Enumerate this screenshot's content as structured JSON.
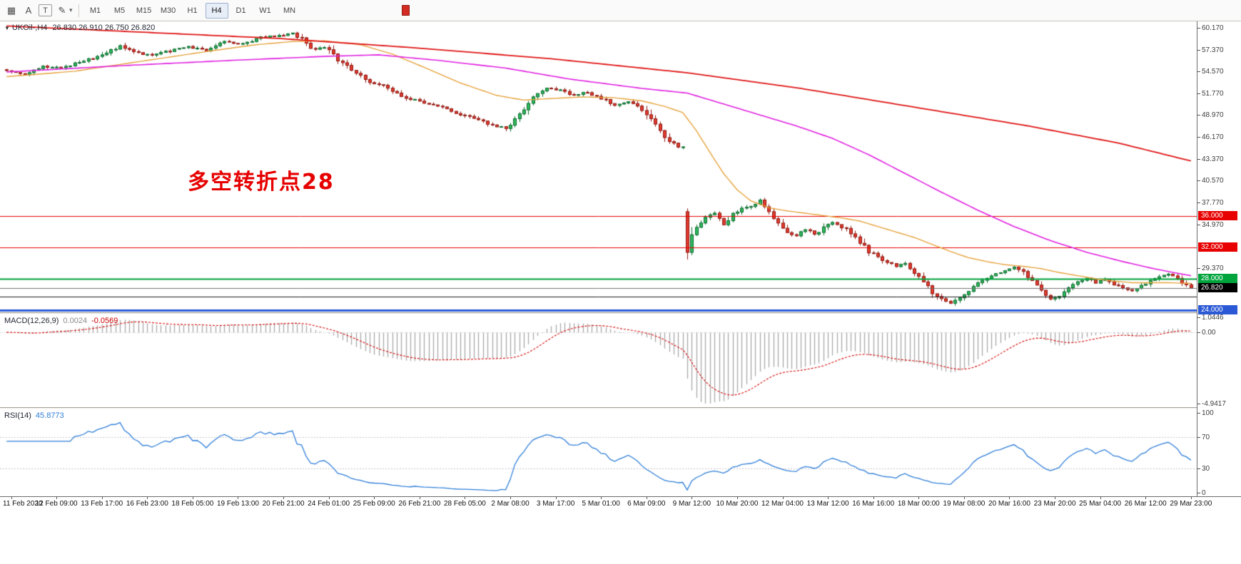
{
  "toolbar": {
    "icons": [
      {
        "name": "grid-icon",
        "glyph": "▦"
      },
      {
        "name": "text-tool-icon",
        "glyph": "A"
      },
      {
        "name": "textbox-tool-icon",
        "glyph": "T"
      },
      {
        "name": "draw-tool-icon",
        "glyph": "✎"
      },
      {
        "name": "draw-tool-caret-icon",
        "glyph": "▾"
      },
      {
        "name": "red-indicator-icon",
        "glyph": ""
      }
    ],
    "timeframes": [
      "M1",
      "M5",
      "M15",
      "M30",
      "H1",
      "H4",
      "D1",
      "W1",
      "MN"
    ],
    "active_timeframe": "H4"
  },
  "chart": {
    "symbol_dropdown_glyph": "▼",
    "symbol": "UKOil-,H4",
    "ohlc": "26.830 26.910 26.750 26.820",
    "annotation": "多空转折点28",
    "annotation_color": "#e60000",
    "price_axis_labels": [
      "60.170",
      "57.370",
      "54.570",
      "51.770",
      "48.970",
      "46.170",
      "43.370",
      "40.570",
      "37.770",
      "34.970",
      "29.370"
    ],
    "level_lines": [
      {
        "price": 36.0,
        "label": "36.000",
        "color": "#e80000",
        "thickness": 1
      },
      {
        "price": 32.0,
        "label": "32.000",
        "color": "#e80000",
        "thickness": 1
      },
      {
        "price": 28.0,
        "label": "28.000",
        "color": "#00a43c",
        "thickness": 2
      },
      {
        "price": 25.7,
        "label": null,
        "color": "#1c1c1c",
        "thickness": 1
      },
      {
        "price": 24.0,
        "label": "24.000",
        "color": "#2b59d6",
        "thickness": 3
      }
    ],
    "current_price": {
      "value": 26.82,
      "label": "26.820",
      "box_color": "#000000",
      "line_color": "#707070"
    }
  },
  "macd": {
    "name": "MACD(12,26,9)",
    "value": "0.0024",
    "signal_value": "-0.0569",
    "axis_values": [
      1.0446,
      0,
      -4.9417
    ],
    "axis_labels": [
      "1.0446",
      "0.00",
      "-4.9417"
    ],
    "range": {
      "max": 1.0446,
      "min": -4.9417
    }
  },
  "rsi": {
    "name": "RSI(14)",
    "value": "45.8773",
    "axis_values": [
      100,
      70,
      30,
      0
    ],
    "axis_labels": [
      "100",
      "70",
      "30",
      "0"
    ],
    "levels": [
      70,
      30
    ]
  },
  "time_axis": {
    "bars_per_label": 10,
    "labels": [
      "11 Feb 2020",
      "12 Feb 09:00",
      "13 Feb 17:00",
      "16 Feb 23:00",
      "18 Feb 05:00",
      "19 Feb 13:00",
      "20 Feb 21:00",
      "24 Feb 01:00",
      "25 Feb 09:00",
      "26 Feb 21:00",
      "28 Feb 05:00",
      "2 Mar 08:00",
      "3 Mar 17:00",
      "5 Mar 01:00",
      "6 Mar 09:00",
      "9 Mar 12:00",
      "10 Mar 20:00",
      "12 Mar 04:00",
      "13 Mar 12:00",
      "16 Mar 16:00",
      "18 Mar 00:00",
      "19 Mar 08:00",
      "20 Mar 16:00",
      "23 Mar 20:00",
      "25 Mar 04:00",
      "26 Mar 12:00",
      "29 Mar 23:00"
    ]
  },
  "chart_data": {
    "type": "candlestick",
    "symbol": "UKOil-",
    "timeframe": "H4",
    "bars": 262,
    "ylim": [
      23.93,
      60.85
    ],
    "last_close": 26.82,
    "up_color": "#2eb85c",
    "up_border": "#0b6b2d",
    "down_color": "#e23b2e",
    "down_border": "#8f1710",
    "macd_colors": {
      "histogram": "#a8a8a8",
      "signal": "#d40000"
    },
    "rsi_color": "#2f7ed8",
    "gaps": [
      {
        "bar": 150,
        "open": 36.6
      }
    ],
    "close_keyframes": [
      [
        0,
        54.6
      ],
      [
        4,
        54.2
      ],
      [
        8,
        55.2
      ],
      [
        12,
        55.0
      ],
      [
        16,
        55.8
      ],
      [
        20,
        56.4
      ],
      [
        25,
        57.8
      ],
      [
        28,
        57.0
      ],
      [
        32,
        56.6
      ],
      [
        36,
        57.2
      ],
      [
        40,
        57.7
      ],
      [
        44,
        57.3
      ],
      [
        48,
        58.4
      ],
      [
        52,
        58.1
      ],
      [
        56,
        58.9
      ],
      [
        60,
        59.2
      ],
      [
        63,
        59.4
      ],
      [
        65,
        58.8
      ],
      [
        67,
        57.4
      ],
      [
        70,
        57.7
      ],
      [
        73,
        56.1
      ],
      [
        76,
        54.9
      ],
      [
        80,
        53.3
      ],
      [
        84,
        52.5
      ],
      [
        88,
        51.2
      ],
      [
        92,
        50.6
      ],
      [
        96,
        49.9
      ],
      [
        100,
        49.1
      ],
      [
        104,
        48.4
      ],
      [
        107,
        47.7
      ],
      [
        110,
        47.3
      ],
      [
        113,
        49.2
      ],
      [
        116,
        51.3
      ],
      [
        119,
        52.5
      ],
      [
        122,
        52.1
      ],
      [
        125,
        51.5
      ],
      [
        128,
        51.9
      ],
      [
        131,
        51.1
      ],
      [
        134,
        50.3
      ],
      [
        137,
        50.7
      ],
      [
        140,
        49.7
      ],
      [
        142,
        48.3
      ],
      [
        144,
        46.9
      ],
      [
        146,
        45.7
      ],
      [
        148,
        44.9
      ],
      [
        149,
        45.3
      ],
      [
        150,
        31.6
      ],
      [
        151,
        33.3
      ],
      [
        152,
        34.7
      ],
      [
        154,
        35.9
      ],
      [
        156,
        36.5
      ],
      [
        158,
        34.9
      ],
      [
        160,
        36.2
      ],
      [
        162,
        36.9
      ],
      [
        164,
        37.3
      ],
      [
        166,
        38.0
      ],
      [
        168,
        36.7
      ],
      [
        170,
        35.2
      ],
      [
        172,
        34.1
      ],
      [
        174,
        33.5
      ],
      [
        176,
        34.3
      ],
      [
        178,
        33.7
      ],
      [
        180,
        34.5
      ],
      [
        182,
        35.3
      ],
      [
        184,
        34.7
      ],
      [
        186,
        33.9
      ],
      [
        188,
        32.7
      ],
      [
        190,
        31.5
      ],
      [
        192,
        30.7
      ],
      [
        194,
        30.1
      ],
      [
        196,
        29.5
      ],
      [
        198,
        29.9
      ],
      [
        200,
        28.7
      ],
      [
        202,
        27.5
      ],
      [
        204,
        26.3
      ],
      [
        206,
        25.3
      ],
      [
        208,
        24.9
      ],
      [
        210,
        25.5
      ],
      [
        212,
        26.3
      ],
      [
        214,
        27.3
      ],
      [
        216,
        28.1
      ],
      [
        218,
        28.7
      ],
      [
        220,
        29.1
      ],
      [
        222,
        29.5
      ],
      [
        224,
        28.9
      ],
      [
        226,
        27.7
      ],
      [
        228,
        26.3
      ],
      [
        230,
        25.3
      ],
      [
        232,
        25.9
      ],
      [
        234,
        26.9
      ],
      [
        236,
        27.7
      ],
      [
        238,
        28.0
      ],
      [
        240,
        27.5
      ],
      [
        242,
        27.9
      ],
      [
        244,
        27.3
      ],
      [
        246,
        26.9
      ],
      [
        248,
        26.5
      ],
      [
        250,
        27.1
      ],
      [
        252,
        27.7
      ],
      [
        254,
        28.4
      ],
      [
        256,
        28.6
      ],
      [
        258,
        27.9
      ],
      [
        259,
        27.4
      ],
      [
        260,
        27.1
      ],
      [
        261,
        26.82
      ]
    ],
    "ma_lines": [
      {
        "name": "ma-fast-orange",
        "color": "#e6a23c",
        "width": 1.4,
        "keyframes": [
          [
            0,
            53.9
          ],
          [
            15,
            54.6
          ],
          [
            30,
            55.9
          ],
          [
            45,
            57.2
          ],
          [
            55,
            58.0
          ],
          [
            63,
            58.4
          ],
          [
            70,
            58.5
          ],
          [
            78,
            58.0
          ],
          [
            85,
            56.8
          ],
          [
            92,
            55.1
          ],
          [
            100,
            53.1
          ],
          [
            108,
            51.5
          ],
          [
            114,
            50.9
          ],
          [
            120,
            51.1
          ],
          [
            127,
            51.3
          ],
          [
            134,
            51.2
          ],
          [
            140,
            50.8
          ],
          [
            145,
            50.1
          ],
          [
            149,
            49.3
          ],
          [
            152,
            47.0
          ],
          [
            155,
            44.2
          ],
          [
            158,
            41.5
          ],
          [
            161,
            39.4
          ],
          [
            164,
            38.0
          ],
          [
            168,
            37.1
          ],
          [
            172,
            36.7
          ],
          [
            176,
            36.4
          ],
          [
            180,
            36.1
          ],
          [
            184,
            35.8
          ],
          [
            188,
            35.4
          ],
          [
            192,
            34.7
          ],
          [
            196,
            34.0
          ],
          [
            200,
            33.3
          ],
          [
            204,
            32.4
          ],
          [
            208,
            31.5
          ],
          [
            212,
            30.7
          ],
          [
            216,
            30.2
          ],
          [
            220,
            29.8
          ],
          [
            224,
            29.6
          ],
          [
            228,
            29.3
          ],
          [
            232,
            28.8
          ],
          [
            236,
            28.4
          ],
          [
            240,
            28.0
          ],
          [
            244,
            27.7
          ],
          [
            248,
            27.5
          ],
          [
            256,
            27.5
          ],
          [
            261,
            27.4
          ]
        ]
      },
      {
        "name": "ma-mid-magenta",
        "color": "#e020e0",
        "width": 1.6,
        "keyframes": [
          [
            0,
            54.5
          ],
          [
            25,
            55.3
          ],
          [
            50,
            56.0
          ],
          [
            70,
            56.5
          ],
          [
            82,
            56.7
          ],
          [
            95,
            56.0
          ],
          [
            110,
            55.0
          ],
          [
            124,
            53.6
          ],
          [
            140,
            52.4
          ],
          [
            150,
            51.8
          ],
          [
            158,
            50.4
          ],
          [
            166,
            49.0
          ],
          [
            174,
            47.6
          ],
          [
            182,
            46.0
          ],
          [
            190,
            43.9
          ],
          [
            198,
            41.5
          ],
          [
            206,
            39.1
          ],
          [
            214,
            36.8
          ],
          [
            222,
            34.7
          ],
          [
            230,
            32.9
          ],
          [
            238,
            31.4
          ],
          [
            246,
            30.2
          ],
          [
            252,
            29.4
          ],
          [
            258,
            28.7
          ],
          [
            261,
            28.4
          ]
        ]
      },
      {
        "name": "ma-slow-red",
        "color": "#e01616",
        "width": 1.8,
        "keyframes": [
          [
            0,
            60.4
          ],
          [
            30,
            59.6
          ],
          [
            60,
            58.8
          ],
          [
            90,
            57.6
          ],
          [
            120,
            56.2
          ],
          [
            150,
            54.4
          ],
          [
            175,
            52.4
          ],
          [
            200,
            50.0
          ],
          [
            225,
            47.6
          ],
          [
            245,
            45.4
          ],
          [
            261,
            43.1
          ]
        ]
      }
    ]
  }
}
